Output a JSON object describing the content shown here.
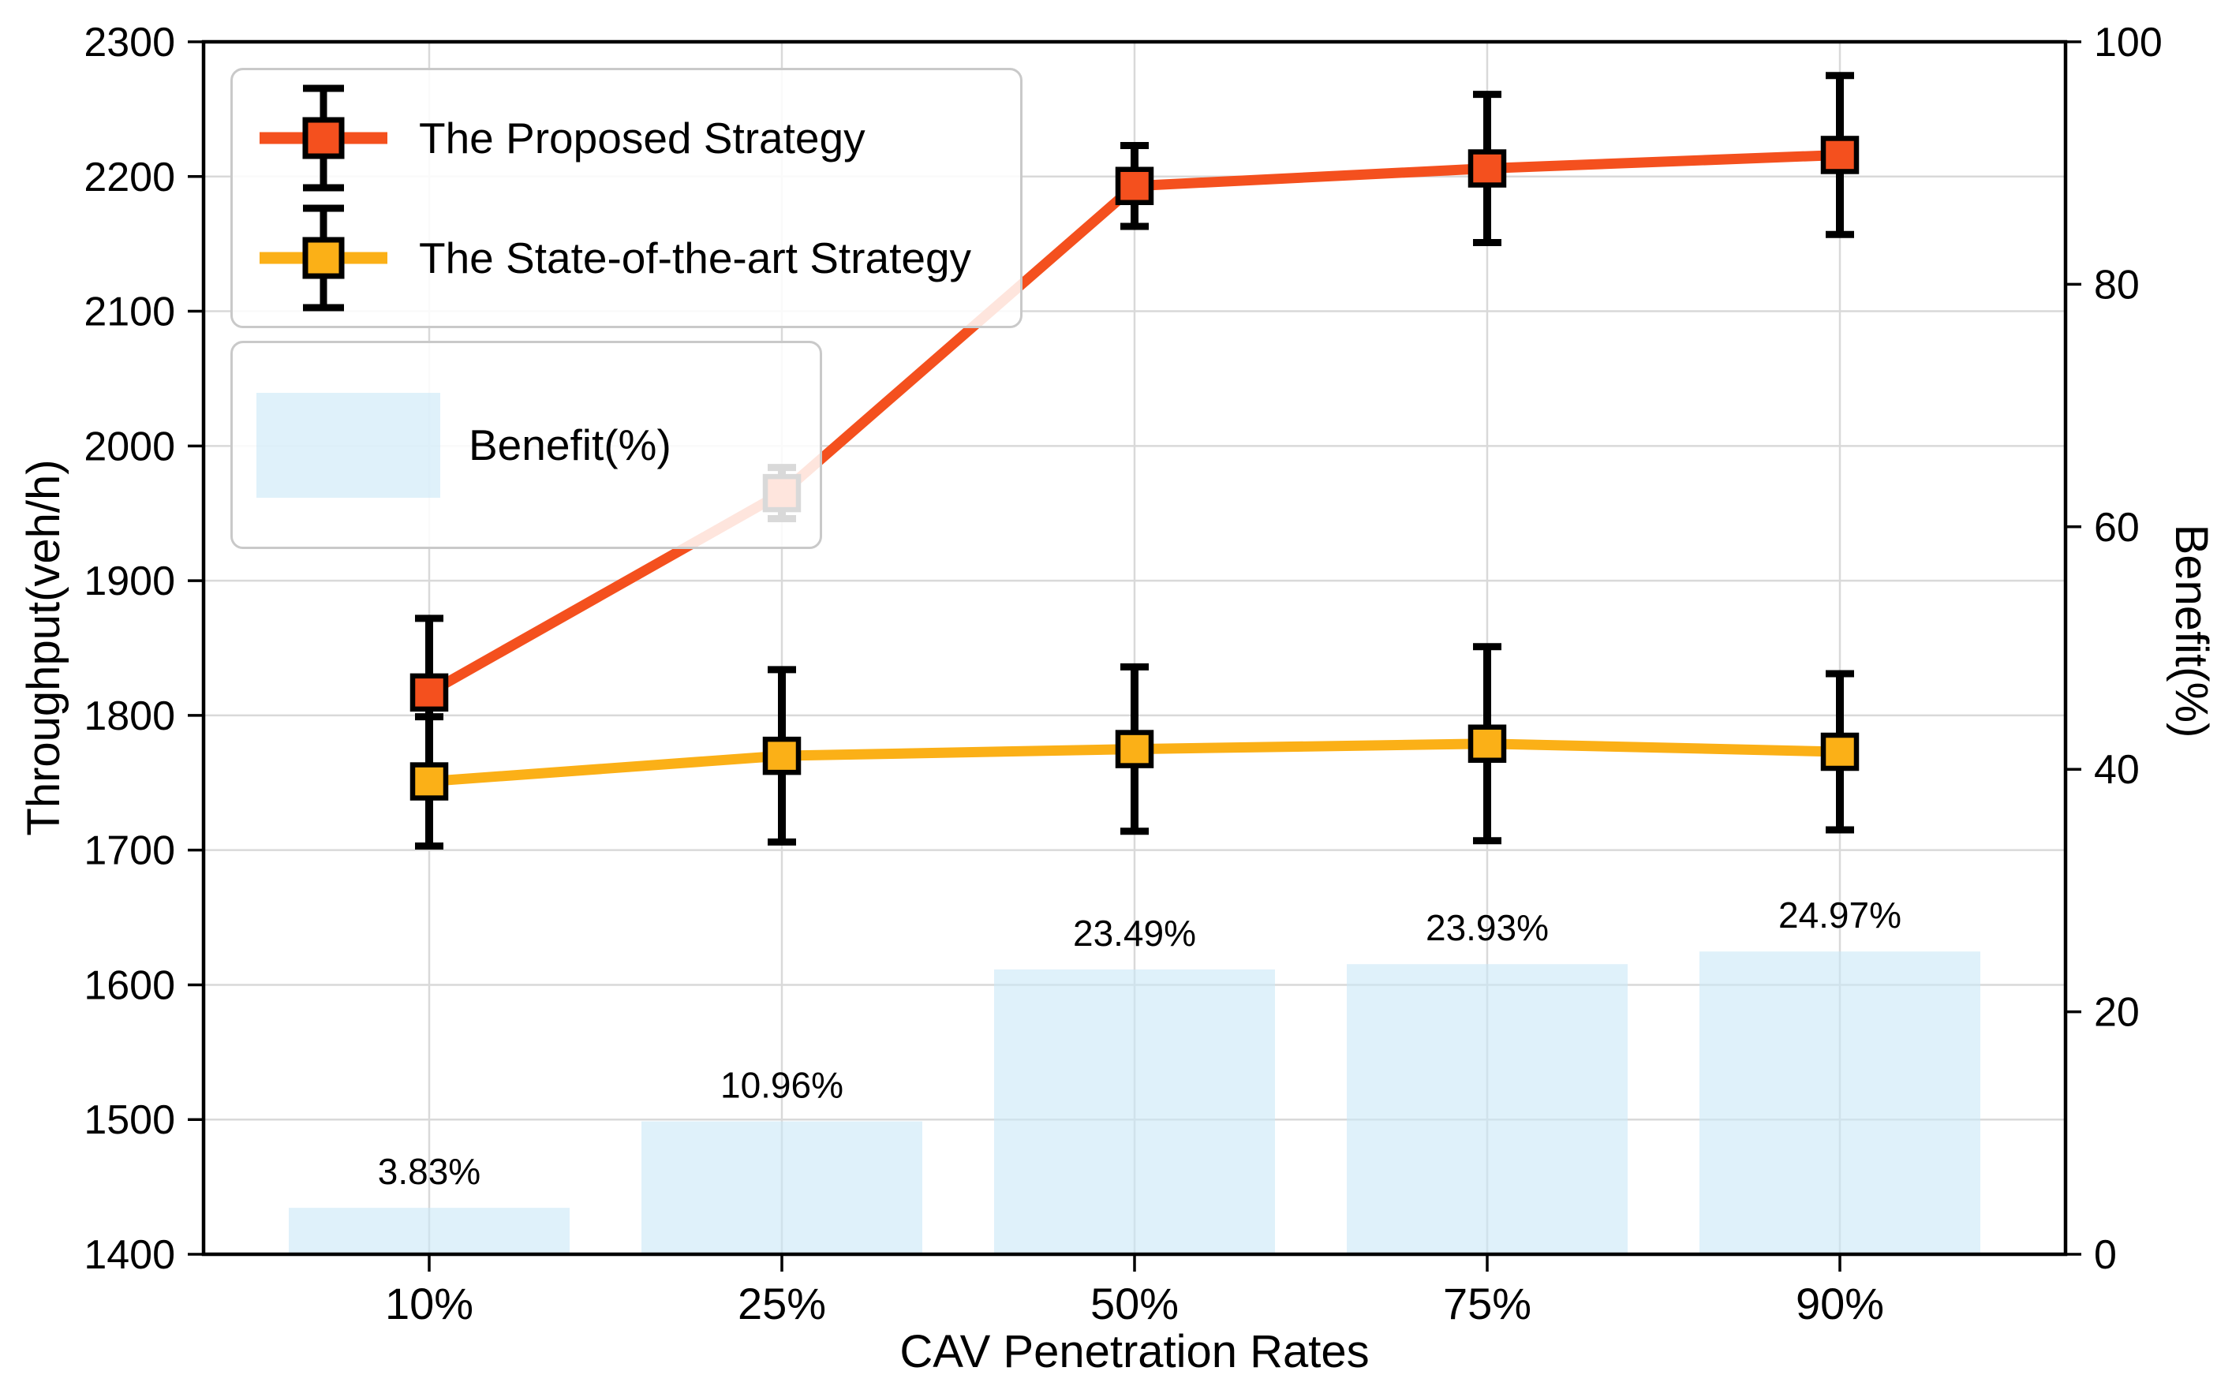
{
  "figure": {
    "background": "#FFFFFF",
    "text_color": "#000000"
  },
  "chart_data": {
    "type": "combo (line with error bars + bar)",
    "categories": [
      "10%",
      "25%",
      "50%",
      "75%",
      "90%"
    ],
    "series": [
      {
        "name": "The Proposed Strategy",
        "type": "line",
        "axis": "left",
        "color": "#F4501E",
        "marker": "square",
        "values": [
          1817,
          1965,
          2193,
          2206,
          2216
        ],
        "errors": [
          55,
          19,
          30,
          55,
          59
        ]
      },
      {
        "name": "The State-of-the-art Strategy",
        "type": "line",
        "axis": "left",
        "color": "#FBB017",
        "marker": "square",
        "values": [
          1751,
          1770,
          1775,
          1779,
          1773
        ],
        "errors": [
          48,
          64,
          61,
          72,
          58
        ]
      },
      {
        "name": "Benefit(%)",
        "type": "bar",
        "axis": "right",
        "color": "#C9E7F6",
        "fill_opacity": 0.6,
        "values": [
          3.83,
          10.96,
          23.49,
          23.93,
          24.97
        ],
        "labels": [
          "3.83%",
          "10.96%",
          "23.49%",
          "23.93%",
          "24.97%"
        ]
      }
    ],
    "x_axis": {
      "label": "CAV Penetration Rates",
      "tick_labels": [
        "10%",
        "25%",
        "50%",
        "75%",
        "90%"
      ]
    },
    "y_axis_left": {
      "label": "Throughput(veh/h)",
      "min": 1400,
      "max": 2300,
      "step": 100,
      "tick_labels": [
        "1400",
        "1500",
        "1600",
        "1700",
        "1800",
        "1900",
        "2000",
        "2100",
        "2200",
        "2300"
      ]
    },
    "y_axis_right": {
      "label": "Benefit(%)",
      "min": 0,
      "max": 100,
      "step": 20,
      "tick_labels": [
        "0",
        "20",
        "40",
        "60",
        "80",
        "100"
      ]
    },
    "grid": {
      "horizontal": true,
      "vertical": true,
      "color": "#D9D9D9"
    },
    "frame_color": "#000000",
    "errorbar_color": "#000000",
    "legend": {
      "strategies": [
        {
          "label": "The Proposed Strategy"
        },
        {
          "label": "The State-of-the-art Strategy"
        }
      ],
      "benefit": {
        "label": "Benefit(%)"
      }
    }
  }
}
